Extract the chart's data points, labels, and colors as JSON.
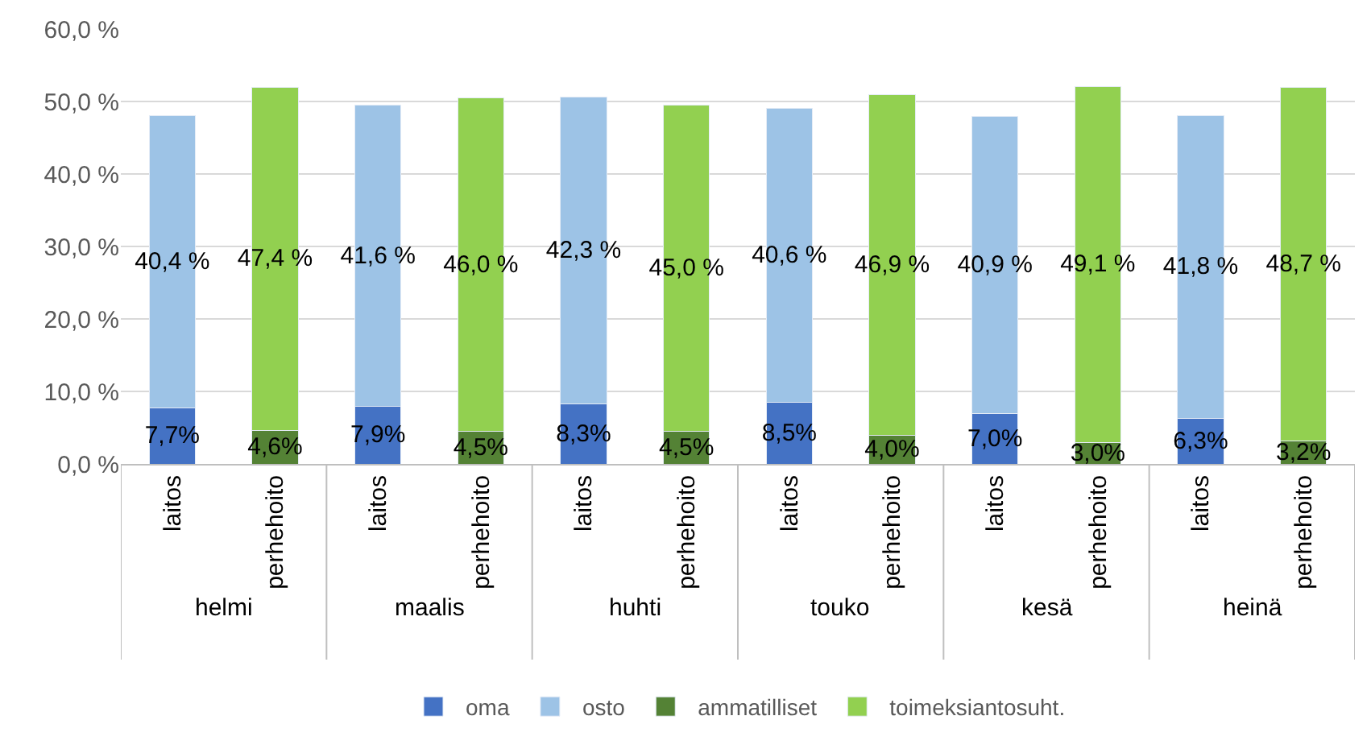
{
  "chart_data": {
    "type": "bar",
    "stacked": true,
    "categories": [
      "laitos",
      "perhehoito",
      "laitos",
      "perhehoito",
      "laitos",
      "perhehoito",
      "laitos",
      "perhehoito",
      "laitos",
      "perhehoito",
      "laitos",
      "perhehoito"
    ],
    "annotations": [
      "helmi",
      "maalis",
      "huhti",
      "touko",
      "kesä",
      "heinä"
    ],
    "series": [
      {
        "name": "oma",
        "color": "#4472c4",
        "values": [
          7.7,
          null,
          7.9,
          null,
          8.3,
          null,
          8.5,
          null,
          7.0,
          null,
          6.3,
          null
        ],
        "value_labels": [
          "7,7%",
          null,
          "7,9%",
          null,
          "8,3%",
          null,
          "8,5%",
          null,
          "7,0%",
          null,
          "6,3%",
          null
        ]
      },
      {
        "name": "osto",
        "color": "#9dc3e6",
        "values": [
          40.4,
          null,
          41.6,
          null,
          42.3,
          null,
          40.6,
          null,
          40.9,
          null,
          41.8,
          null
        ],
        "value_labels": [
          "40,4 %",
          null,
          "41,6 %",
          null,
          "42,3 %",
          null,
          "40,6 %",
          null,
          "40,9 %",
          null,
          "41,8 %",
          null
        ]
      },
      {
        "name": "ammatilliset",
        "color": "#548235",
        "values": [
          null,
          4.6,
          null,
          4.5,
          null,
          4.5,
          null,
          4.0,
          null,
          3.0,
          null,
          3.2
        ],
        "value_labels": [
          null,
          "4,6%",
          null,
          "4,5%",
          null,
          "4,5%",
          null,
          "4,0%",
          null,
          "3,0%",
          null,
          "3,2%"
        ]
      },
      {
        "name": "toimeksiantosuht.",
        "color": "#92d050",
        "values": [
          null,
          47.4,
          null,
          46.0,
          null,
          45.0,
          null,
          46.9,
          null,
          49.1,
          null,
          48.7
        ],
        "value_labels": [
          null,
          "47,4 %",
          null,
          "46,0 %",
          null,
          "45,0 %",
          null,
          "46,9 %",
          null,
          "49,1 %",
          null,
          "48,7 %"
        ]
      }
    ],
    "ylim": [
      0,
      60
    ],
    "yticks": [
      {
        "value": 0,
        "label": "0,0 %"
      },
      {
        "value": 10,
        "label": "10,0 %"
      },
      {
        "value": 20,
        "label": "20,0 %"
      },
      {
        "value": 30,
        "label": "30,0 %"
      },
      {
        "value": 40,
        "label": "40,0 %"
      },
      {
        "value": 50,
        "label": "50,0 %"
      },
      {
        "value": 60,
        "label": "60,0 %"
      }
    ],
    "grid": "y",
    "legend": "bottom"
  }
}
